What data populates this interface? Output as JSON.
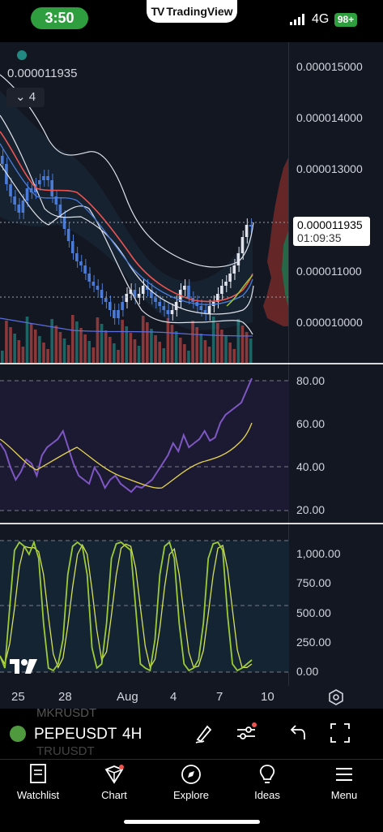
{
  "status": {
    "time": "3:50",
    "app_name": "TradingView",
    "network": "4G",
    "battery": "98+"
  },
  "chart": {
    "pair_price_header": "0.000011935",
    "collapse_count": "4",
    "price_axis": [
      "0.000015000",
      "0.000014000",
      "0.000013000",
      "0.000011000",
      "0.000010000"
    ],
    "last_price": "0.000011935",
    "countdown": "01:09:35",
    "rsi_axis": [
      "80.00",
      "60.00",
      "40.00",
      "20.00"
    ],
    "stoch_axis": [
      "1,000.00",
      "750.00",
      "500.00",
      "250.00",
      "0.00"
    ],
    "time_axis": [
      "25",
      "28",
      "Aug",
      "4",
      "7",
      "10"
    ],
    "colors": {
      "up": "#26a69a",
      "down": "#ef5350",
      "candle_blue": "#4a7bd8",
      "rsi": "#7e57c2",
      "rsi_ma": "#e6d44a",
      "stoch_k": "#9ccc34",
      "stoch_d": "#d4e157"
    }
  },
  "toolbar": {
    "symbol": "PEPEUSDT",
    "interval": "4H",
    "ghost_above": "MKRUSDT",
    "ghost_below": "TRUUSDT"
  },
  "nav": {
    "items": [
      {
        "label": "Watchlist",
        "icon": "watchlist-icon"
      },
      {
        "label": "Chart",
        "icon": "chart-icon"
      },
      {
        "label": "Explore",
        "icon": "compass-icon"
      },
      {
        "label": "Ideas",
        "icon": "lightbulb-icon"
      },
      {
        "label": "Menu",
        "icon": "menu-icon"
      }
    ]
  }
}
